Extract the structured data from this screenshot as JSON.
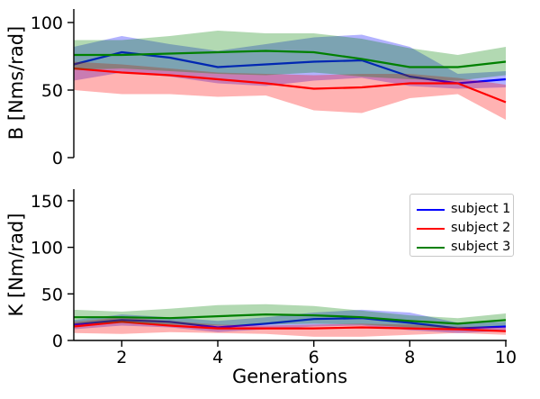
{
  "figure": {
    "background": "#ffffff",
    "axis_color": "#000000",
    "grid": false
  },
  "legend": {
    "location": "upper right of K plot",
    "entries": [
      {
        "label": "subject 1",
        "color": "#0000ff"
      },
      {
        "label": "subject 2",
        "color": "#ff0000"
      },
      {
        "label": "subject 3",
        "color": "#008000"
      }
    ]
  },
  "chart_data": [
    {
      "type": "line",
      "title": "",
      "ylabel": "B [Nms/rad]",
      "xlabel": "",
      "x": [
        1,
        2,
        3,
        4,
        5,
        6,
        7,
        8,
        9,
        10
      ],
      "xlim": [
        1,
        10
      ],
      "ylim": [
        0,
        110
      ],
      "xticks": [],
      "yticks": [
        0,
        50,
        100
      ],
      "grid": false,
      "band_opacity": 0.3,
      "series": [
        {
          "name": "subject 1",
          "color": "#0000ff",
          "mean": [
            69,
            78,
            74,
            67,
            69,
            71,
            72,
            60,
            55,
            58
          ],
          "band_upper": [
            82,
            90,
            84,
            79,
            84,
            89,
            91,
            82,
            62,
            64
          ],
          "band_lower": [
            57,
            63,
            60,
            55,
            53,
            57,
            59,
            53,
            51,
            52
          ]
        },
        {
          "name": "subject 2",
          "color": "#ff0000",
          "mean": [
            66,
            63,
            61,
            58,
            55,
            51,
            52,
            55,
            55,
            41
          ],
          "band_upper": [
            71,
            69,
            66,
            63,
            62,
            61,
            62,
            62,
            59,
            54
          ],
          "band_lower": [
            50,
            47,
            47,
            45,
            46,
            35,
            33,
            44,
            47,
            28
          ]
        },
        {
          "name": "subject 3",
          "color": "#008000",
          "mean": [
            76,
            76,
            77,
            78,
            79,
            78,
            73,
            67,
            67,
            71
          ],
          "band_upper": [
            87,
            87,
            90,
            94,
            92,
            92,
            88,
            81,
            76,
            82
          ],
          "band_lower": [
            65,
            66,
            64,
            62,
            61,
            63,
            60,
            58,
            57,
            61
          ]
        }
      ]
    },
    {
      "type": "line",
      "title": "",
      "ylabel": "K [Nm/rad]",
      "xlabel": "Generations",
      "x": [
        1,
        2,
        3,
        4,
        5,
        6,
        7,
        8,
        9,
        10
      ],
      "xlim": [
        1,
        10
      ],
      "ylim": [
        0,
        162.5
      ],
      "xticks": [
        2,
        4,
        6,
        8,
        10
      ],
      "yticks": [
        0,
        50,
        100,
        150
      ],
      "grid": false,
      "band_opacity": 0.3,
      "series": [
        {
          "name": "subject 1",
          "color": "#0000ff",
          "mean": [
            17,
            22,
            20,
            14,
            18,
            23,
            24,
            19,
            13,
            15
          ],
          "band_upper": [
            22,
            28,
            25,
            21,
            25,
            30,
            33,
            30,
            19,
            20
          ],
          "band_lower": [
            12,
            16,
            14,
            9,
            12,
            15,
            16,
            11,
            8,
            10
          ]
        },
        {
          "name": "subject 2",
          "color": "#ff0000",
          "mean": [
            15,
            20,
            16,
            13,
            13,
            13,
            14,
            13,
            12,
            10
          ],
          "band_upper": [
            20,
            25,
            21,
            17,
            16,
            17,
            18,
            17,
            15,
            14
          ],
          "band_lower": [
            8,
            7,
            9,
            8,
            7,
            4,
            4,
            6,
            8,
            6
          ]
        },
        {
          "name": "subject 3",
          "color": "#008000",
          "mean": [
            25,
            25,
            24,
            26,
            28,
            27,
            25,
            21,
            18,
            22
          ],
          "band_upper": [
            33,
            31,
            34,
            38,
            39,
            37,
            32,
            27,
            24,
            29
          ],
          "band_lower": [
            18,
            19,
            17,
            16,
            17,
            18,
            17,
            14,
            13,
            16
          ]
        }
      ]
    }
  ]
}
